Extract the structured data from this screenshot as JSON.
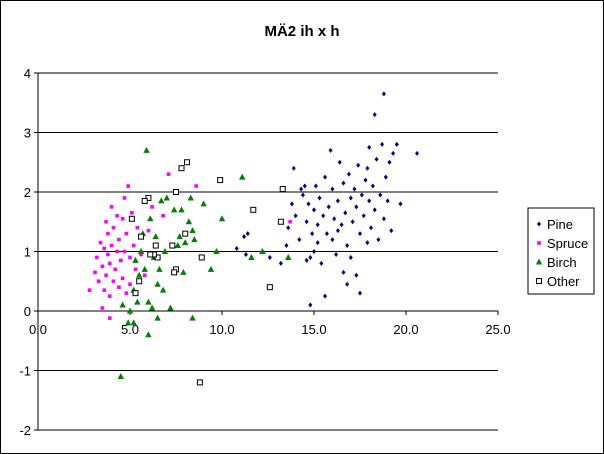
{
  "chart_data": {
    "type": "scatter",
    "title": "MÄ2 ih x h",
    "xlabel": "",
    "ylabel": "",
    "xlim": [
      0,
      25
    ],
    "ylim": [
      -2,
      4
    ],
    "x_ticks": [
      "0.0",
      "5.0",
      "10.0",
      "15.0",
      "20.0",
      "25.0"
    ],
    "y_ticks": [
      "-2",
      "-1",
      "0",
      "1",
      "2",
      "3",
      "4"
    ],
    "grid": "horizontal major gridlines",
    "legend_position": "right",
    "series": [
      {
        "name": "Pine",
        "color": "#000080",
        "marker": "diamond",
        "points": [
          [
            10.8,
            1.05
          ],
          [
            11.2,
            1.25
          ],
          [
            11.4,
            1.3
          ],
          [
            11.3,
            0.95
          ],
          [
            12.6,
            0.9
          ],
          [
            13.2,
            0.8
          ],
          [
            13.5,
            1.1
          ],
          [
            13.6,
            1.4
          ],
          [
            13.8,
            1.8
          ],
          [
            13.9,
            2.4
          ],
          [
            14.0,
            1.6
          ],
          [
            14.2,
            1.2
          ],
          [
            14.3,
            2.05
          ],
          [
            14.4,
            1.95
          ],
          [
            14.5,
            2.1
          ],
          [
            14.6,
            1.5
          ],
          [
            14.7,
            1.8
          ],
          [
            14.8,
            0.9
          ],
          [
            14.8,
            0.1
          ],
          [
            14.9,
            1.3
          ],
          [
            15.0,
            1.7
          ],
          [
            15.0,
            1.0
          ],
          [
            15.1,
            2.1
          ],
          [
            15.2,
            1.45
          ],
          [
            15.3,
            1.9
          ],
          [
            15.4,
            0.8
          ],
          [
            15.5,
            1.6
          ],
          [
            15.6,
            2.25
          ],
          [
            15.6,
            0.25
          ],
          [
            15.7,
            1.3
          ],
          [
            15.8,
            1.75
          ],
          [
            15.9,
            2.7
          ],
          [
            16.0,
            1.2
          ],
          [
            16.0,
            2.05
          ],
          [
            16.1,
            1.55
          ],
          [
            16.2,
            0.95
          ],
          [
            16.3,
            1.85
          ],
          [
            16.4,
            2.5
          ],
          [
            16.5,
            1.45
          ],
          [
            16.6,
            0.65
          ],
          [
            16.6,
            2.15
          ],
          [
            16.7,
            1.65
          ],
          [
            16.8,
            1.1
          ],
          [
            16.9,
            2.3
          ],
          [
            17.0,
            1.9
          ],
          [
            17.0,
            0.9
          ],
          [
            17.1,
            1.5
          ],
          [
            17.2,
            2.05
          ],
          [
            17.3,
            0.6
          ],
          [
            17.3,
            1.75
          ],
          [
            17.4,
            2.45
          ],
          [
            17.5,
            1.3
          ],
          [
            17.5,
            0.3
          ],
          [
            17.6,
            1.95
          ],
          [
            17.7,
            1.6
          ],
          [
            17.8,
            2.2
          ],
          [
            17.9,
            1.15
          ],
          [
            18.0,
            2.75
          ],
          [
            18.0,
            1.85
          ],
          [
            18.1,
            1.4
          ],
          [
            18.2,
            2.1
          ],
          [
            18.3,
            3.3
          ],
          [
            18.3,
            1.7
          ],
          [
            18.4,
            2.55
          ],
          [
            18.5,
            1.2
          ],
          [
            18.6,
            1.95
          ],
          [
            18.7,
            2.8
          ],
          [
            18.8,
            1.55
          ],
          [
            18.8,
            3.65
          ],
          [
            18.9,
            2.25
          ],
          [
            19.0,
            1.85
          ],
          [
            19.1,
            2.5
          ],
          [
            19.2,
            1.35
          ],
          [
            19.3,
            2.65
          ],
          [
            19.5,
            2.8
          ],
          [
            19.7,
            1.8
          ],
          [
            20.6,
            2.65
          ],
          [
            16.3,
            1.35
          ],
          [
            16.8,
            0.45
          ],
          [
            17.9,
            2.4
          ],
          [
            15.2,
            1.15
          ],
          [
            14.6,
            0.85
          ]
        ]
      },
      {
        "name": "Spruce",
        "color": "#ff00ff",
        "marker": "square",
        "points": [
          [
            2.8,
            0.35
          ],
          [
            3.1,
            0.65
          ],
          [
            3.2,
            0.9
          ],
          [
            3.3,
            0.5
          ],
          [
            3.4,
            1.15
          ],
          [
            3.5,
            0.75
          ],
          [
            3.6,
            1.05
          ],
          [
            3.6,
            0.35
          ],
          [
            3.7,
            1.5
          ],
          [
            3.7,
            0.6
          ],
          [
            3.8,
            0.95
          ],
          [
            3.8,
            1.3
          ],
          [
            3.9,
            0.25
          ],
          [
            3.9,
            0.8
          ],
          [
            4.0,
            1.75
          ],
          [
            4.0,
            1.1
          ],
          [
            4.1,
            0.5
          ],
          [
            4.1,
            1.4
          ],
          [
            4.2,
            0.7
          ],
          [
            4.3,
            1.6
          ],
          [
            4.3,
            1.0
          ],
          [
            4.4,
            0.4
          ],
          [
            4.4,
            1.2
          ],
          [
            4.5,
            0.85
          ],
          [
            4.6,
            1.55
          ],
          [
            4.6,
            0.55
          ],
          [
            4.7,
            1.9
          ],
          [
            4.7,
            1.0
          ],
          [
            4.8,
            0.3
          ],
          [
            4.8,
            1.3
          ],
          [
            4.9,
            2.1
          ],
          [
            5.0,
            0.9
          ],
          [
            5.0,
            0.45
          ],
          [
            5.1,
            1.65
          ],
          [
            5.2,
            1.1
          ],
          [
            5.3,
            0.7
          ],
          [
            5.4,
            1.4
          ],
          [
            5.6,
            0.95
          ],
          [
            5.8,
            0.6
          ],
          [
            6.0,
            1.35
          ],
          [
            6.2,
            1.75
          ],
          [
            6.8,
            1.6
          ],
          [
            7.1,
            2.3
          ],
          [
            8.6,
            2.1
          ],
          [
            3.5,
            0.05
          ],
          [
            3.9,
            -0.12
          ],
          [
            13.7,
            1.5
          ],
          [
            6.4,
            0.9
          ]
        ]
      },
      {
        "name": "Birch",
        "color": "#008000",
        "marker": "triangle",
        "points": [
          [
            4.5,
            -1.1
          ],
          [
            4.6,
            0.1
          ],
          [
            4.9,
            -0.2
          ],
          [
            5.0,
            0.0
          ],
          [
            5.2,
            -0.2
          ],
          [
            5.2,
            0.35
          ],
          [
            5.4,
            0.15
          ],
          [
            5.5,
            0.6
          ],
          [
            5.6,
            1.0
          ],
          [
            5.7,
            1.3
          ],
          [
            5.8,
            0.7
          ],
          [
            5.9,
            2.7
          ],
          [
            6.0,
            0.15
          ],
          [
            6.0,
            -0.4
          ],
          [
            6.1,
            1.55
          ],
          [
            6.2,
            0.05
          ],
          [
            6.3,
            0.9
          ],
          [
            6.4,
            1.25
          ],
          [
            6.5,
            0.45
          ],
          [
            6.6,
            0.7
          ],
          [
            6.7,
            1.85
          ],
          [
            6.8,
            0.35
          ],
          [
            6.9,
            1.0
          ],
          [
            7.0,
            1.9
          ],
          [
            7.2,
            0.05
          ],
          [
            7.4,
            1.7
          ],
          [
            7.6,
            1.1
          ],
          [
            7.7,
            1.25
          ],
          [
            7.8,
            1.7
          ],
          [
            7.9,
            0.65
          ],
          [
            8.0,
            1.15
          ],
          [
            8.2,
            1.5
          ],
          [
            8.3,
            1.9
          ],
          [
            8.4,
            1.35
          ],
          [
            8.4,
            -0.12
          ],
          [
            8.5,
            1.2
          ],
          [
            9.0,
            1.8
          ],
          [
            9.4,
            0.7
          ],
          [
            9.7,
            1.0
          ],
          [
            10.0,
            1.55
          ],
          [
            11.1,
            2.25
          ],
          [
            11.6,
            0.9
          ],
          [
            12.2,
            1.0
          ],
          [
            13.6,
            0.9
          ],
          [
            6.5,
            -0.12
          ],
          [
            5.3,
            0.85
          ]
        ]
      },
      {
        "name": "Other",
        "color": "#000000",
        "marker": "open-square",
        "points": [
          [
            5.1,
            1.55
          ],
          [
            5.3,
            0.3
          ],
          [
            5.5,
            0.5
          ],
          [
            5.6,
            1.25
          ],
          [
            6.0,
            1.9
          ],
          [
            6.4,
            1.1
          ],
          [
            6.5,
            0.9
          ],
          [
            7.3,
            1.1
          ],
          [
            7.5,
            2.0
          ],
          [
            7.5,
            0.7
          ],
          [
            7.8,
            2.4
          ],
          [
            8.0,
            1.3
          ],
          [
            8.1,
            2.5
          ],
          [
            8.9,
            0.9
          ],
          [
            9.9,
            2.2
          ],
          [
            11.7,
            1.7
          ],
          [
            12.6,
            0.4
          ],
          [
            13.3,
            2.05
          ],
          [
            13.2,
            1.5
          ],
          [
            8.8,
            -1.2
          ],
          [
            7.4,
            0.65
          ],
          [
            6.3,
            0.95
          ],
          [
            5.8,
            1.85
          ],
          [
            6.1,
            0.95
          ]
        ]
      }
    ]
  }
}
